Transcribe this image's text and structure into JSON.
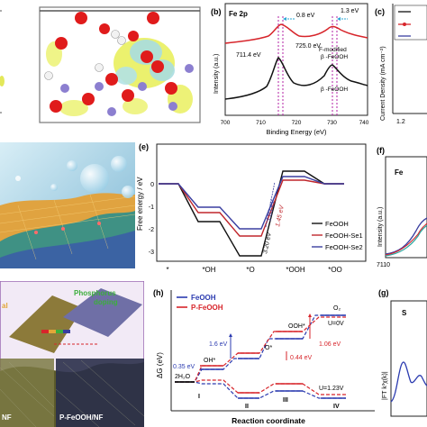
{
  "panels": {
    "b": {
      "letter": "(b)",
      "element": "Fe 2p",
      "ylabel": "Intensity (a.u.)",
      "xlabel": "Binding Energy (eV)",
      "ticks": [
        "700",
        "710",
        "720",
        "730",
        "740"
      ],
      "shift1": "0.8 eV",
      "shift2": "1.3 eV",
      "peak1": "711.4 eV",
      "peak2": "725.0 eV",
      "label_mod": "F-modified",
      "label_mod2": "β -FeOOH",
      "label_plain": "β -FeOOH"
    },
    "c": {
      "letter": "(c)",
      "ylabel": "Current Density (mA cm⁻²)",
      "tick": "1.2"
    },
    "e": {
      "letter": "(e)",
      "ylabel": "Free energy / eV",
      "xticks": [
        "*",
        "*OH",
        "*O",
        "*OOH",
        "*OO"
      ],
      "yticks": [
        "0",
        "-1",
        "-2",
        "-3"
      ],
      "ann1": "1.83 eV",
      "ann2": "1.45 eV",
      "ann3": "3.20 eV",
      "legend": [
        "FeOOH",
        "FeOOH-Se1",
        "FeOOH-Se2"
      ],
      "colors": [
        "#111111",
        "#c0262c",
        "#3a3fa0"
      ]
    },
    "f": {
      "letter": "(f)",
      "element": "Fe",
      "ylabel": "Intensity (a.u.)",
      "tick": "7110"
    },
    "h": {
      "letter": "(h)",
      "ylabel": "ΔG (eV)",
      "xlabel": "Reaction coordinate",
      "legend": [
        "FeOOH",
        "P-FeOOH"
      ],
      "colors": [
        "#2b3bb0",
        "#d7252b"
      ],
      "species": [
        "2H₂O",
        "OH*",
        "O*",
        "OOH*",
        "O₂"
      ],
      "steps": [
        "I",
        "II",
        "III",
        "IV"
      ],
      "e1": "1.6 eV",
      "e2": "0.35 eV",
      "e3": "1.06 eV",
      "e4": "0.44 eV",
      "u0": "U=0V",
      "u123": "U=1.23V"
    },
    "g": {
      "letter": "(g)",
      "element": "S",
      "ylabel": "|FT k³χ(k)|"
    },
    "illus": {
      "label_phos": "Phosphorus",
      "label_dop": "doping",
      "label_al": "al",
      "label_nf": "NF",
      "label_pfeooh": "P-FeOOH/NF"
    }
  }
}
